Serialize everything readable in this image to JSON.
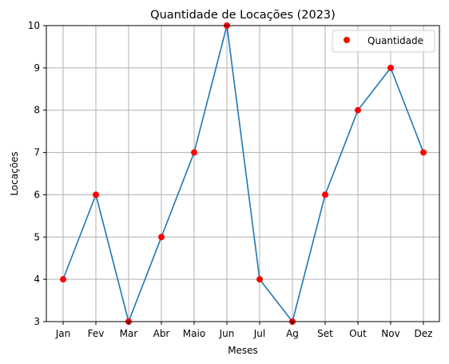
{
  "chart_data": {
    "type": "line",
    "title": "Quantidade de Locações (2023)",
    "xlabel": "Meses",
    "ylabel": "Locações",
    "categories": [
      "Jan",
      "Fev",
      "Mar",
      "Abr",
      "Maio",
      "Jun",
      "Jul",
      "Ag",
      "Set",
      "Out",
      "Nov",
      "Dez"
    ],
    "series": [
      {
        "name": "Quantidade",
        "values": [
          4,
          6,
          3,
          5,
          7,
          10,
          4,
          3,
          6,
          8,
          9,
          7
        ],
        "line_color": "#1f77b4",
        "marker_color": "#ff0000"
      }
    ],
    "ylim": [
      3,
      10
    ],
    "yticks": [
      3,
      4,
      5,
      6,
      7,
      8,
      9,
      10
    ],
    "grid": true,
    "legend": {
      "position": "top-right"
    }
  }
}
